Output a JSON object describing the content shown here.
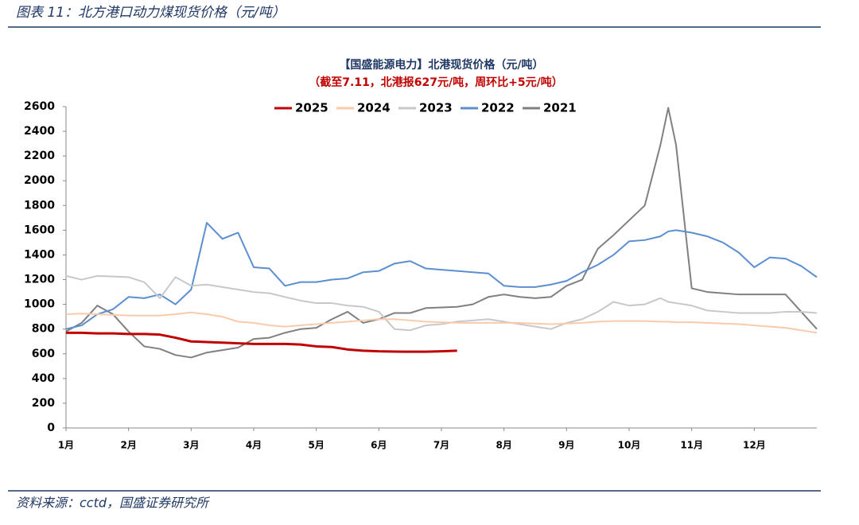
{
  "figure_title": "图表 11：北方港口动力煤现货价格（元/吨）",
  "source": "资料来源：cctd，国盛证券研究所",
  "chart_data": {
    "type": "line",
    "title": "【国盛能源电力】北港现货价格（元/吨）",
    "subtitle": "（截至7.11，北港报627元/吨，周环比+5元/吨）",
    "x": [
      1,
      1.25,
      1.5,
      1.75,
      2,
      2.25,
      2.5,
      2.75,
      3,
      3.25,
      3.5,
      3.75,
      4,
      4.25,
      4.5,
      4.75,
      5,
      5.25,
      5.5,
      5.75,
      6,
      6.25,
      6.5,
      6.75,
      7,
      7.25,
      7.5,
      7.75,
      8,
      8.25,
      8.5,
      8.75,
      9,
      9.25,
      9.5,
      9.75,
      10,
      10.25,
      10.5,
      10.625,
      10.75,
      11,
      11.25,
      11.5,
      11.75,
      12,
      12.25,
      12.5,
      12.75,
      13
    ],
    "xlim": [
      1,
      13
    ],
    "xticks": [
      {
        "value": 1,
        "label": "1月"
      },
      {
        "value": 2,
        "label": "2月"
      },
      {
        "value": 3,
        "label": "3月"
      },
      {
        "value": 4,
        "label": "4月"
      },
      {
        "value": 5,
        "label": "5月"
      },
      {
        "value": 6,
        "label": "6月"
      },
      {
        "value": 7,
        "label": "7月"
      },
      {
        "value": 8,
        "label": "8月"
      },
      {
        "value": 9,
        "label": "9月"
      },
      {
        "value": 10,
        "label": "10月"
      },
      {
        "value": 11,
        "label": "11月"
      },
      {
        "value": 12,
        "label": "12月"
      }
    ],
    "ylim": [
      0,
      2600
    ],
    "yticks": [
      0,
      200,
      400,
      600,
      800,
      1000,
      1200,
      1400,
      1600,
      1800,
      2000,
      2200,
      2400,
      2600
    ],
    "legend": "top",
    "series": [
      {
        "name": "2025",
        "color": "#c00000",
        "values": [
          770,
          770,
          765,
          765,
          760,
          760,
          755,
          730,
          700,
          695,
          690,
          685,
          680,
          680,
          680,
          675,
          660,
          655,
          635,
          625,
          620,
          618,
          617,
          617,
          620,
          625,
          null,
          null,
          null,
          null,
          null,
          null,
          null,
          null,
          null,
          null,
          null,
          null,
          null,
          null,
          null,
          null,
          null,
          null,
          null,
          null,
          null,
          null,
          null,
          null
        ]
      },
      {
        "name": "2024",
        "color": "#f8cbad",
        "values": [
          920,
          925,
          920,
          915,
          910,
          910,
          910,
          920,
          935,
          920,
          900,
          860,
          850,
          830,
          820,
          830,
          840,
          850,
          860,
          870,
          880,
          880,
          870,
          860,
          855,
          850,
          850,
          850,
          850,
          850,
          845,
          840,
          845,
          850,
          860,
          865,
          865,
          865,
          860,
          860,
          855,
          855,
          850,
          845,
          840,
          830,
          820,
          810,
          790,
          770
        ]
      },
      {
        "name": "2023",
        "color": "#c8c8c8",
        "values": [
          1230,
          1200,
          1230,
          1225,
          1220,
          1180,
          1050,
          1220,
          1150,
          1160,
          1140,
          1120,
          1100,
          1090,
          1060,
          1030,
          1010,
          1010,
          990,
          980,
          940,
          800,
          790,
          830,
          840,
          860,
          870,
          880,
          860,
          840,
          820,
          800,
          850,
          880,
          940,
          1020,
          990,
          1000,
          1050,
          1020,
          1010,
          990,
          950,
          940,
          930,
          930,
          930,
          940,
          940,
          930
        ]
      },
      {
        "name": "2022",
        "color": "#5b8fd0",
        "values": [
          800,
          830,
          920,
          960,
          1060,
          1050,
          1080,
          1000,
          1120,
          1660,
          1530,
          1580,
          1300,
          1290,
          1150,
          1180,
          1180,
          1200,
          1210,
          1260,
          1270,
          1330,
          1350,
          1290,
          1280,
          1270,
          1260,
          1250,
          1150,
          1140,
          1140,
          1160,
          1190,
          1260,
          1320,
          1400,
          1510,
          1520,
          1550,
          1590,
          1600,
          1580,
          1550,
          1500,
          1420,
          1300,
          1380,
          1370,
          1310,
          1220
        ]
      },
      {
        "name": "2021",
        "color": "#808080",
        "values": [
          780,
          850,
          990,
          920,
          780,
          660,
          640,
          590,
          570,
          610,
          630,
          650,
          720,
          730,
          770,
          800,
          810,
          880,
          940,
          850,
          880,
          930,
          930,
          970,
          975,
          980,
          1000,
          1060,
          1080,
          1060,
          1050,
          1060,
          1150,
          1200,
          1450,
          1560,
          1680,
          1800,
          2290,
          2590,
          2290,
          1130,
          1100,
          1090,
          1080,
          1080,
          1080,
          1080,
          940,
          800
        ]
      }
    ]
  }
}
